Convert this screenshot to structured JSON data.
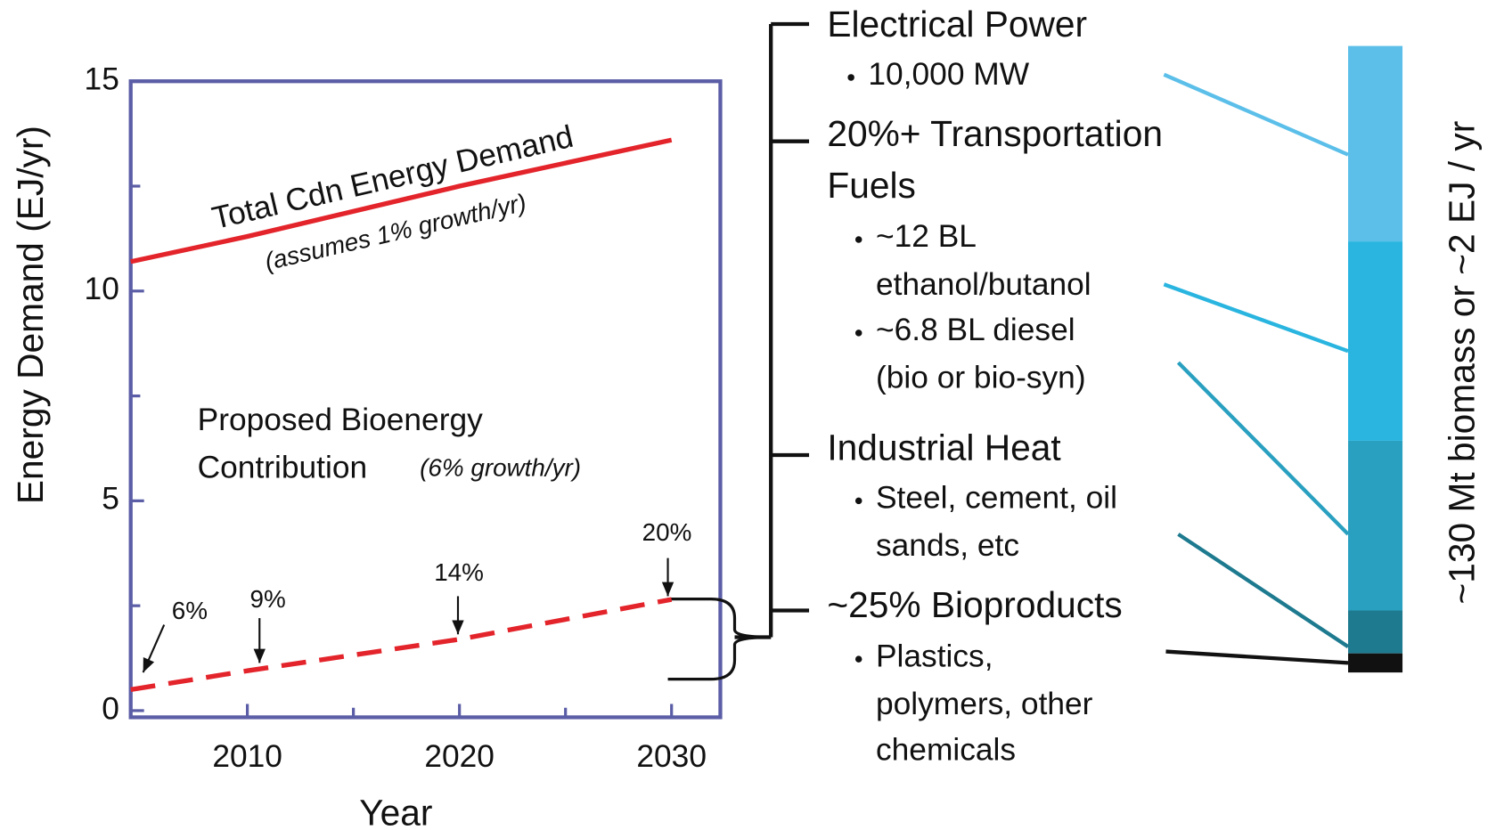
{
  "chart_data": {
    "type": "line",
    "x": [
      2004.5,
      2010,
      2020,
      2030
    ],
    "series": [
      {
        "name": "Total Cdn Energy Demand",
        "color": "#e3242b",
        "dashed": false,
        "values": [
          10.7,
          11.3,
          12.5,
          13.6
        ]
      },
      {
        "name": "Proposed Bioenergy",
        "color": "#e3242b",
        "dashed": true,
        "values": [
          0.5,
          0.95,
          1.7,
          2.65
        ]
      }
    ],
    "xlim": [
      2004.5,
      2032.3
    ],
    "xticks": [
      2010,
      2020,
      2030
    ],
    "xminorticks": [
      2015,
      2025
    ],
    "ylim": [
      0,
      15
    ],
    "yticks": [
      0,
      5,
      10,
      15
    ],
    "yminorticks": [
      2.5,
      7.5,
      12.5
    ],
    "xlabel": "Year",
    "ylabel": "Energy Demand (EJ/yr)",
    "annotations": [
      "Total Cdn Energy Demand",
      "(assumes 1% growth/yr)",
      "Proposed Bioenergy",
      "Contribution",
      "(6% growth/yr)"
    ],
    "percent_labels": [
      "6%",
      "9%",
      "14%",
      "20%"
    ]
  },
  "breakdown": {
    "axis_label": "~130 Mt biomass or ~2 EJ / yr",
    "items": [
      {
        "heading": [
          "Electrical Power"
        ],
        "bullets": [
          [
            "10,000 MW"
          ]
        ]
      },
      {
        "heading": [
          "20%+ Transportation",
          "Fuels"
        ],
        "bullets": [
          [
            "~12 BL",
            "ethanol/butanol"
          ],
          [
            "~6.8 BL diesel",
            "(bio or bio-syn)"
          ]
        ]
      },
      {
        "heading": [
          "Industrial Heat"
        ],
        "bullets": [
          [
            "Steel, cement, oil",
            "sands, etc"
          ]
        ]
      },
      {
        "heading": [
          "~25% Bioproducts"
        ],
        "bullets": [
          [
            "Plastics,",
            "polymers, other",
            "chemicals"
          ]
        ]
      }
    ]
  }
}
